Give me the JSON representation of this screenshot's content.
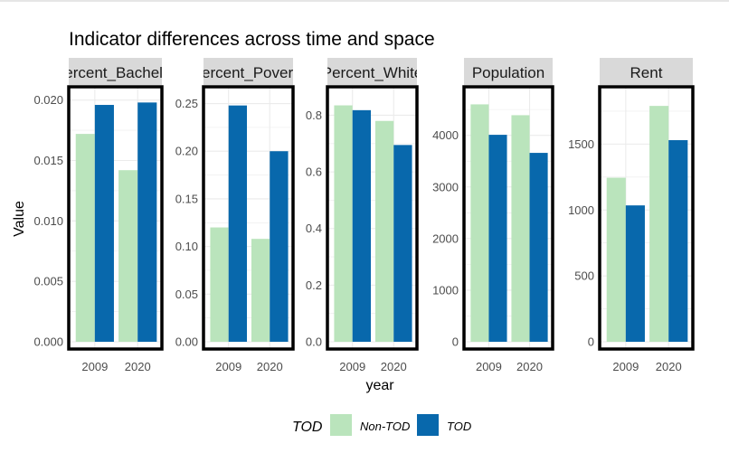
{
  "chart": {
    "title": "Indicator differences across time and space",
    "xlabel": "year",
    "ylabel": "Value"
  },
  "legend": {
    "title": "TOD",
    "items": [
      {
        "label": "Non-TOD",
        "color": "#bae4bc"
      },
      {
        "label": "TOD",
        "color": "#0868ac"
      }
    ]
  },
  "chart_data": {
    "type": "bar",
    "title": "Indicator differences across time and space",
    "xlabel": "year",
    "ylabel": "Value",
    "categories": [
      "2009",
      "2020"
    ],
    "grid": true,
    "legend_position": "bottom",
    "facets": [
      {
        "strip": "Percent_Bachelor",
        "ylim": [
          0,
          0.0205
        ],
        "yticks": [
          0,
          0.005,
          0.01,
          0.015,
          0.02
        ],
        "ytick_labels": [
          "0.000",
          "0.005",
          "0.010",
          "0.015",
          "0.020"
        ],
        "series": [
          {
            "name": "Non-TOD",
            "values": [
              0.0172,
              0.0142
            ]
          },
          {
            "name": "TOD",
            "values": [
              0.0196,
              0.0198
            ]
          }
        ]
      },
      {
        "strip": "Percent_Poverty",
        "ylim": [
          0,
          0.26
        ],
        "yticks": [
          0,
          0.05,
          0.1,
          0.15,
          0.2,
          0.25
        ],
        "ytick_labels": [
          "0.00",
          "0.05",
          "0.10",
          "0.15",
          "0.20",
          "0.25"
        ],
        "series": [
          {
            "name": "Non-TOD",
            "values": [
              0.12,
              0.108
            ]
          },
          {
            "name": "TOD",
            "values": [
              0.248,
              0.2
            ]
          }
        ]
      },
      {
        "strip": "Percent_White",
        "ylim": [
          0,
          0.875
        ],
        "yticks": [
          0,
          0.2,
          0.4,
          0.6,
          0.8
        ],
        "ytick_labels": [
          "0.0",
          "0.2",
          "0.4",
          "0.6",
          "0.8"
        ],
        "series": [
          {
            "name": "Non-TOD",
            "values": [
              0.835,
              0.78
            ]
          },
          {
            "name": "TOD",
            "values": [
              0.818,
              0.695
            ]
          }
        ]
      },
      {
        "strip": "Population",
        "ylim": [
          0,
          4800
        ],
        "yticks": [
          0,
          1000,
          2000,
          3000,
          4000
        ],
        "ytick_labels": [
          "0",
          "1000",
          "2000",
          "3000",
          "4000"
        ],
        "series": [
          {
            "name": "Non-TOD",
            "values": [
              4600,
              4390
            ]
          },
          {
            "name": "TOD",
            "values": [
              4010,
              3660
            ]
          }
        ]
      },
      {
        "strip": "Rent",
        "ylim": [
          0,
          1880
        ],
        "yticks": [
          0,
          500,
          1000,
          1500
        ],
        "ytick_labels": [
          "0",
          "500",
          "1000",
          "1500"
        ],
        "series": [
          {
            "name": "Non-TOD",
            "values": [
              1245,
              1790
            ]
          },
          {
            "name": "TOD",
            "values": [
              1035,
              1530
            ]
          }
        ]
      }
    ]
  }
}
